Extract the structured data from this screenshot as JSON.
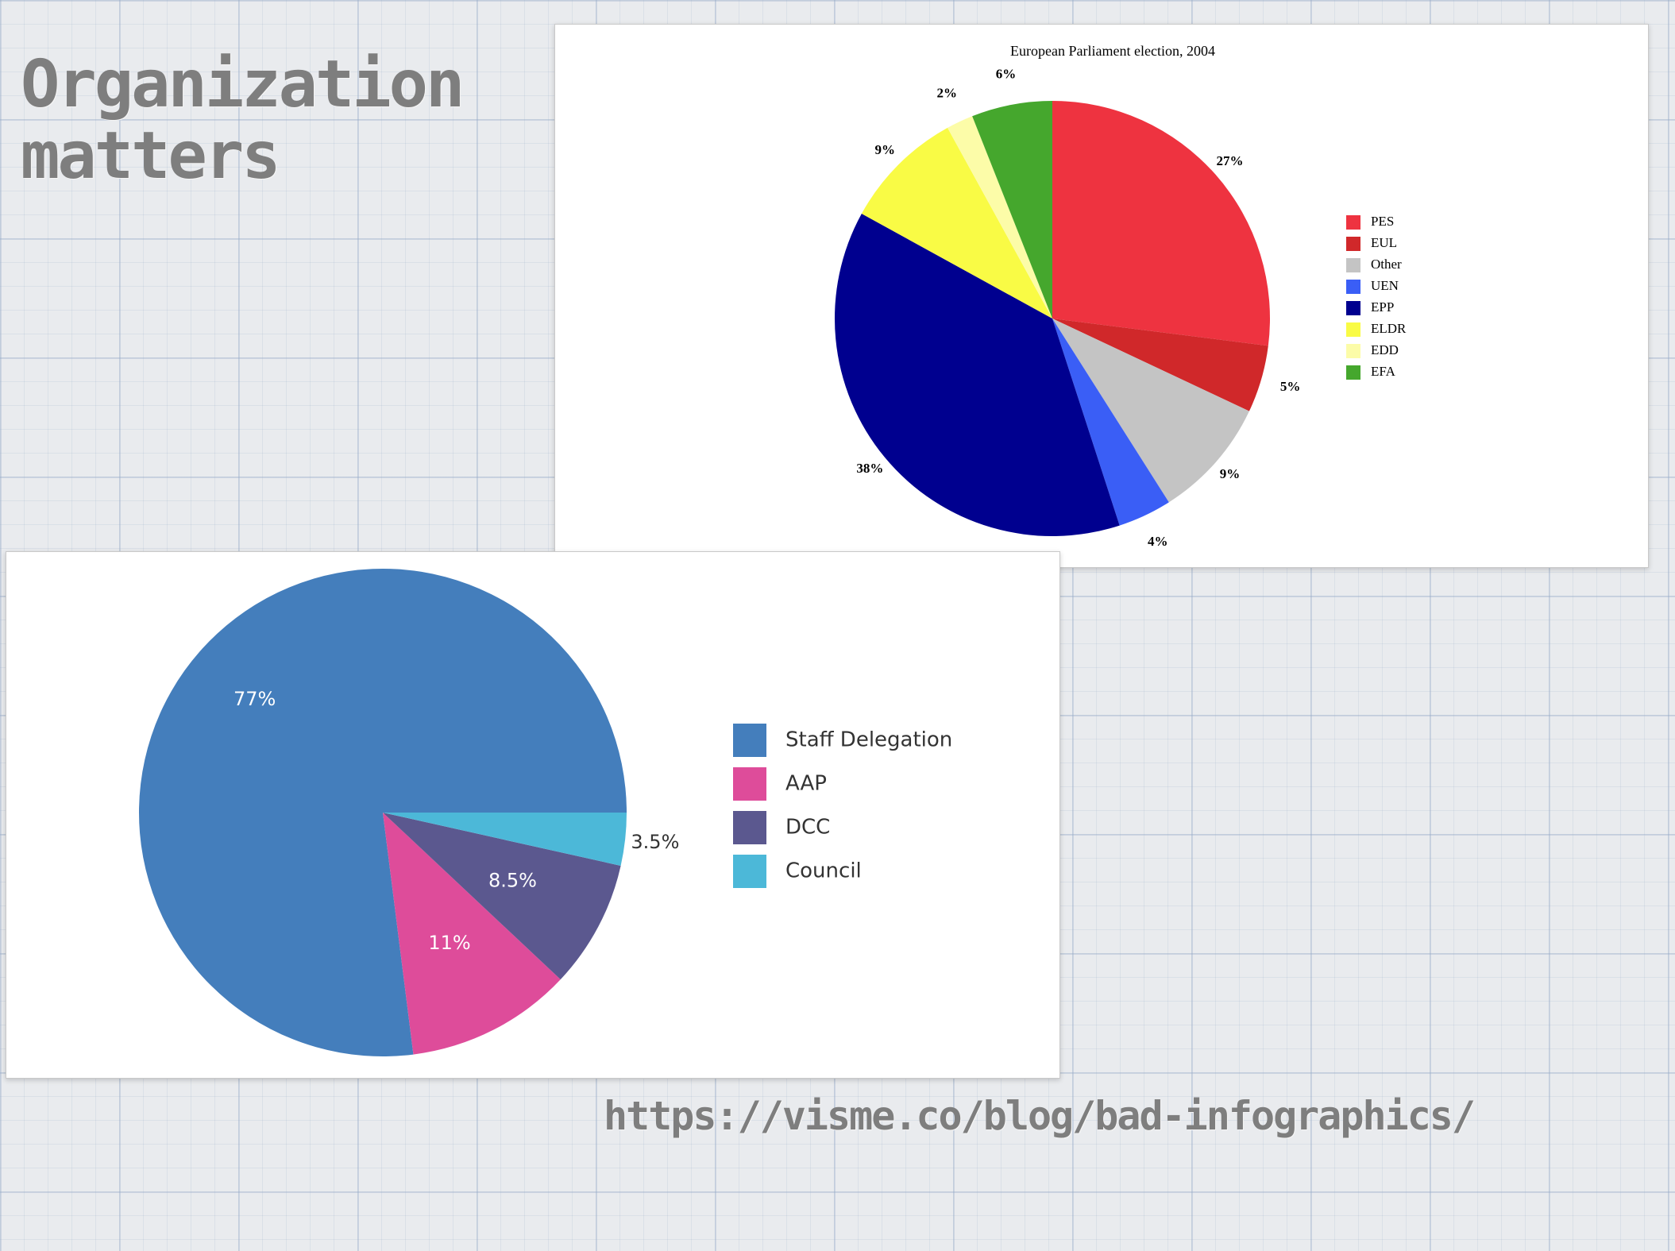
{
  "slide": {
    "title_line1": "Organization",
    "title_line2": "matters",
    "source_link": "https://visme.co/blog/bad-infographics/"
  },
  "chart_data": [
    {
      "type": "pie",
      "title": "European Parliament election, 2004",
      "legend_placement": "right",
      "slices": [
        {
          "name": "PES",
          "value": 27,
          "label": "27%",
          "color": "#ee3340"
        },
        {
          "name": "EUL",
          "value": 5,
          "label": "5%",
          "color": "#d0282a"
        },
        {
          "name": "Other",
          "value": 9,
          "label": "9%",
          "color": "#c4c4c4"
        },
        {
          "name": "UEN",
          "value": 4,
          "label": "4%",
          "color": "#3a5ef6"
        },
        {
          "name": "EPP",
          "value": 38,
          "label": "38%",
          "color": "#00008f"
        },
        {
          "name": "ELDR",
          "value": 9,
          "label": "9%",
          "color": "#f9fb45"
        },
        {
          "name": "EDD",
          "value": 2,
          "label": "2%",
          "color": "#fcfca8"
        },
        {
          "name": "EFA",
          "value": 6,
          "label": "6%",
          "color": "#45a72d"
        }
      ]
    },
    {
      "type": "pie",
      "title": "",
      "legend_placement": "right",
      "slices": [
        {
          "name": "Staff Delegation",
          "value": 77,
          "label": "77%",
          "color": "#447ebc"
        },
        {
          "name": "AAP",
          "value": 11,
          "label": "11%",
          "color": "#de4c9a"
        },
        {
          "name": "DCC",
          "value": 8.5,
          "label": "8.5%",
          "color": "#5b588f"
        },
        {
          "name": "Council",
          "value": 3.5,
          "label": "3.5%",
          "color": "#4cb8d8"
        }
      ]
    }
  ]
}
